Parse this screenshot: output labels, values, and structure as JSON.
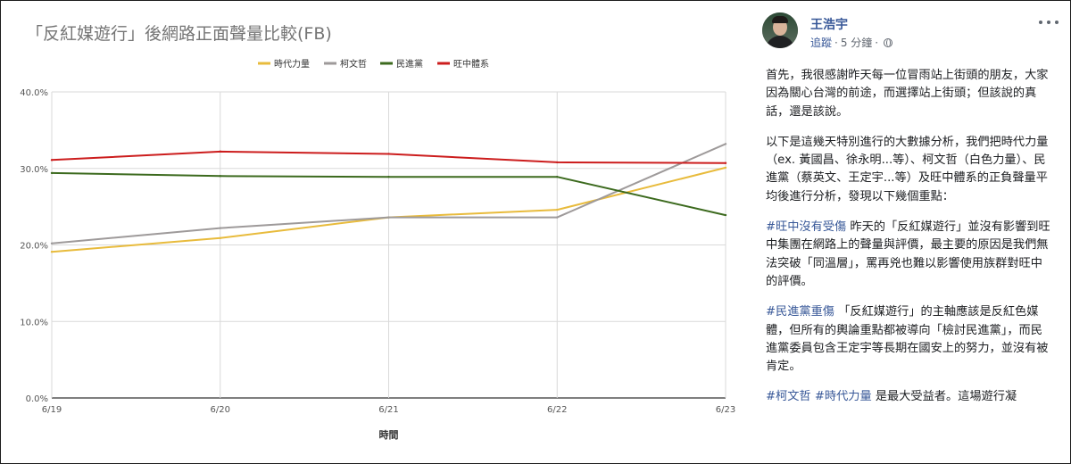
{
  "chart": {
    "title": "「反紅媒遊行」後網路正面聲量比較(FB)",
    "legend_items": [
      {
        "label": "時代力量",
        "color": "#e8bb3c"
      },
      {
        "label": "柯文哲",
        "color": "#9e9a9a"
      },
      {
        "label": "民進黨",
        "color": "#3c6a1e"
      },
      {
        "label": "旺中體系",
        "color": "#cc1d1d"
      }
    ],
    "y_tick_labels": [
      "0.0%",
      "10.0%",
      "20.0%",
      "30.0%",
      "40.0%"
    ],
    "x_tick_labels": [
      "6/19",
      "6/20",
      "6/21",
      "6/22",
      "6/23"
    ],
    "xlabel": "時間"
  },
  "chart_data": {
    "type": "line",
    "title": "「反紅媒遊行」後網路正面聲量比較(FB)",
    "xlabel": "時間",
    "ylabel": "",
    "x": [
      "6/19",
      "6/20",
      "6/21",
      "6/22",
      "6/23"
    ],
    "ylim": [
      0,
      40
    ],
    "y_unit": "%",
    "grid": true,
    "legend_position": "top-center",
    "series": [
      {
        "name": "時代力量",
        "color": "#e8bb3c",
        "values": [
          19.1,
          20.9,
          23.6,
          24.6,
          30.1
        ]
      },
      {
        "name": "柯文哲",
        "color": "#9e9a9a",
        "values": [
          20.2,
          22.2,
          23.6,
          23.6,
          33.2
        ]
      },
      {
        "name": "民進黨",
        "color": "#3c6a1e",
        "values": [
          29.4,
          29.0,
          28.9,
          28.9,
          23.9
        ]
      },
      {
        "name": "旺中體系",
        "color": "#cc1d1d",
        "values": [
          31.1,
          32.2,
          31.9,
          30.8,
          30.7
        ]
      }
    ]
  },
  "post": {
    "author_name": "王浩宇",
    "follow_label": "追蹤",
    "meta_separator": "·",
    "timestamp": "5 分鐘",
    "privacy_icon": "globe-icon",
    "more_icon": "more-dots-icon",
    "paragraphs": [
      {
        "text": "首先，我很感謝昨天每一位冒雨站上街頭的朋友，大家因為關心台灣的前途，而選擇站上街頭；但該說的真話，還是該說。"
      },
      {
        "text": "以下是這幾天特別進行的大數據分析，我們把時代力量（ex. 黃國昌、徐永明...等）、柯文哲（白色力量）、民進黨（蔡英文、王定宇...等）及旺中體系的正負聲量平均後進行分析，發現以下幾個重點："
      },
      {
        "hashtag": "#旺中沒有受傷",
        "text": " 昨天的「反紅媒遊行」並沒有影響到旺中集團在網路上的聲量與評價，最主要的原因是我們無法突破「同溫層」，罵再兇也難以影響使用族群對旺中的評價。"
      },
      {
        "hashtag": "#民進黨重傷",
        "text": " 「反紅媒遊行」的主軸應該是反紅色媒體，但所有的輿論重點都被導向「檢討民進黨」，而民進黨委員包含王定宇等長期在國安上的努力，並沒有被肯定。"
      },
      {
        "hashtag": "#柯文哲",
        "hashtag2": "#時代力量",
        "text": " 是最大受益者。這場遊行凝"
      }
    ]
  }
}
